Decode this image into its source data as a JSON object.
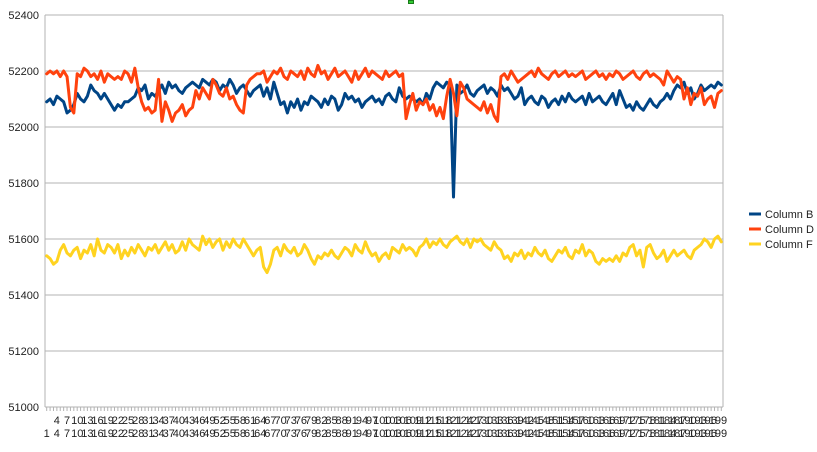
{
  "chart_data": {
    "type": "line",
    "title": "",
    "xlabel": "",
    "ylabel": "",
    "x_count": 200,
    "x_label_step": 3,
    "ylim": [
      51000,
      52400
    ],
    "y_ticks": [
      51000,
      51200,
      51400,
      51600,
      51800,
      52000,
      52200,
      52400
    ],
    "grid": true,
    "legend_position": "right",
    "series": [
      {
        "name": "Column B",
        "color": "#004586",
        "values": [
          52090,
          52100,
          52080,
          52110,
          52100,
          52090,
          52050,
          52060,
          52080,
          52120,
          52100,
          52090,
          52110,
          52150,
          52130,
          52120,
          52100,
          52120,
          52100,
          52080,
          52060,
          52080,
          52070,
          52090,
          52090,
          52100,
          52110,
          52140,
          52130,
          52150,
          52100,
          52120,
          52110,
          52130,
          52150,
          52120,
          52160,
          52140,
          52150,
          52130,
          52120,
          52140,
          52150,
          52160,
          52150,
          52140,
          52170,
          52160,
          52150,
          52170,
          52160,
          52130,
          52150,
          52140,
          52170,
          52150,
          52120,
          52140,
          52150,
          52130,
          52110,
          52130,
          52140,
          52150,
          52110,
          52140,
          52100,
          52160,
          52120,
          52080,
          52090,
          52050,
          52090,
          52070,
          52100,
          52060,
          52090,
          52080,
          52110,
          52100,
          52090,
          52070,
          52100,
          52080,
          52110,
          52100,
          52060,
          52080,
          52120,
          52100,
          52110,
          52090,
          52100,
          52070,
          52090,
          52100,
          52110,
          52090,
          52100,
          52080,
          52110,
          52120,
          52100,
          52090,
          52140,
          52110,
          52100,
          52110,
          52100,
          52090,
          52100,
          52080,
          52120,
          52100,
          52140,
          52160,
          52150,
          52140,
          52160,
          52150,
          51750,
          52150,
          52120,
          52130,
          52150,
          52120,
          52110,
          52130,
          52140,
          52150,
          52120,
          52140,
          52130,
          52110,
          52150,
          52130,
          52140,
          52120,
          52100,
          52110,
          52140,
          52080,
          52100,
          52110,
          52090,
          52080,
          52110,
          52100,
          52070,
          52090,
          52100,
          52080,
          52110,
          52090,
          52120,
          52100,
          52090,
          52100,
          52110,
          52080,
          52120,
          52090,
          52100,
          52110,
          52090,
          52080,
          52100,
          52120,
          52080,
          52130,
          52100,
          52070,
          52080,
          52060,
          52090,
          52070,
          52060,
          52080,
          52100,
          52080,
          52070,
          52090,
          52100,
          52120,
          52100,
          52130,
          52150,
          52140,
          52160,
          52120,
          52140,
          52100,
          52120,
          52150,
          52130,
          52140,
          52150,
          52140,
          52160,
          52150
        ]
      },
      {
        "name": "Column D",
        "color": "#ff420e",
        "values": [
          52190,
          52200,
          52190,
          52200,
          52180,
          52200,
          52180,
          52070,
          52050,
          52190,
          52180,
          52210,
          52200,
          52180,
          52190,
          52170,
          52200,
          52160,
          52190,
          52180,
          52170,
          52180,
          52170,
          52200,
          52190,
          52160,
          52210,
          52140,
          52090,
          52060,
          52070,
          52050,
          52060,
          52170,
          52020,
          52090,
          52060,
          52020,
          52050,
          52060,
          52080,
          52040,
          52060,
          52070,
          52130,
          52100,
          52140,
          52120,
          52100,
          52170,
          52150,
          52120,
          52110,
          52140,
          52100,
          52110,
          52080,
          52060,
          52050,
          52150,
          52170,
          52180,
          52190,
          52190,
          52200,
          52160,
          52180,
          52200,
          52190,
          52210,
          52180,
          52170,
          52200,
          52190,
          52180,
          52200,
          52170,
          52210,
          52190,
          52180,
          52220,
          52190,
          52200,
          52170,
          52190,
          52210,
          52180,
          52190,
          52200,
          52180,
          52160,
          52200,
          52170,
          52190,
          52210,
          52180,
          52200,
          52190,
          52180,
          52170,
          52200,
          52180,
          52190,
          52200,
          52180,
          52190,
          52030,
          52080,
          52120,
          52060,
          52090,
          52080,
          52100,
          52060,
          52080,
          52040,
          52070,
          52030,
          52110,
          52170,
          52120,
          52040,
          52160,
          52140,
          52100,
          52090,
          52080,
          52070,
          52060,
          52090,
          52050,
          52080,
          52040,
          52020,
          52180,
          52190,
          52170,
          52200,
          52180,
          52160,
          52170,
          52180,
          52190,
          52200,
          52180,
          52210,
          52190,
          52180,
          52170,
          52190,
          52200,
          52180,
          52190,
          52200,
          52180,
          52190,
          52180,
          52190,
          52200,
          52170,
          52180,
          52190,
          52200,
          52180,
          52190,
          52170,
          52190,
          52180,
          52200,
          52190,
          52170,
          52180,
          52190,
          52200,
          52180,
          52170,
          52190,
          52200,
          52180,
          52190,
          52180,
          52170,
          52150,
          52200,
          52180,
          52160,
          52180,
          52170,
          52100,
          52140,
          52080,
          52120,
          52110,
          52140,
          52080,
          52100,
          52110,
          52070,
          52120,
          52130
        ]
      },
      {
        "name": "Column F",
        "color": "#ffd320",
        "values": [
          51540,
          51530,
          51510,
          51520,
          51560,
          51580,
          51550,
          51540,
          51560,
          51570,
          51530,
          51560,
          51550,
          51580,
          51540,
          51600,
          51560,
          51550,
          51580,
          51570,
          51550,
          51580,
          51530,
          51560,
          51540,
          51570,
          51550,
          51580,
          51560,
          51540,
          51570,
          51560,
          51580,
          51550,
          51570,
          51590,
          51560,
          51580,
          51550,
          51560,
          51590,
          51560,
          51600,
          51580,
          51570,
          51560,
          51610,
          51580,
          51600,
          51570,
          51590,
          51600,
          51560,
          51590,
          51570,
          51600,
          51580,
          51570,
          51600,
          51580,
          51560,
          51540,
          51560,
          51570,
          51500,
          51480,
          51510,
          51560,
          51570,
          51540,
          51580,
          51560,
          51550,
          51570,
          51540,
          51550,
          51580,
          51560,
          51530,
          51510,
          51540,
          51530,
          51550,
          51540,
          51560,
          51540,
          51530,
          51550,
          51570,
          51560,
          51540,
          51580,
          51560,
          51550,
          51590,
          51560,
          51540,
          51550,
          51520,
          51540,
          51550,
          51530,
          51570,
          51560,
          51550,
          51580,
          51560,
          51570,
          51560,
          51540,
          51570,
          51580,
          51600,
          51570,
          51590,
          51580,
          51600,
          51580,
          51570,
          51590,
          51600,
          51610,
          51590,
          51580,
          51600,
          51570,
          51600,
          51590,
          51600,
          51580,
          51570,
          51560,
          51590,
          51570,
          51560,
          51530,
          51540,
          51520,
          51550,
          51540,
          51560,
          51530,
          51550,
          51540,
          51570,
          51550,
          51540,
          51560,
          51530,
          51520,
          51540,
          51560,
          51550,
          51570,
          51540,
          51530,
          51560,
          51550,
          51580,
          51540,
          51560,
          51550,
          51520,
          51510,
          51530,
          51520,
          51530,
          51520,
          51540,
          51520,
          51550,
          51540,
          51570,
          51580,
          51540,
          51560,
          51500,
          51570,
          51580,
          51550,
          51530,
          51540,
          51560,
          51520,
          51540,
          51560,
          51540,
          51550,
          51560,
          51540,
          51530,
          51560,
          51570,
          51580,
          51600,
          51590,
          51570,
          51600,
          51610,
          51590
        ]
      }
    ]
  }
}
